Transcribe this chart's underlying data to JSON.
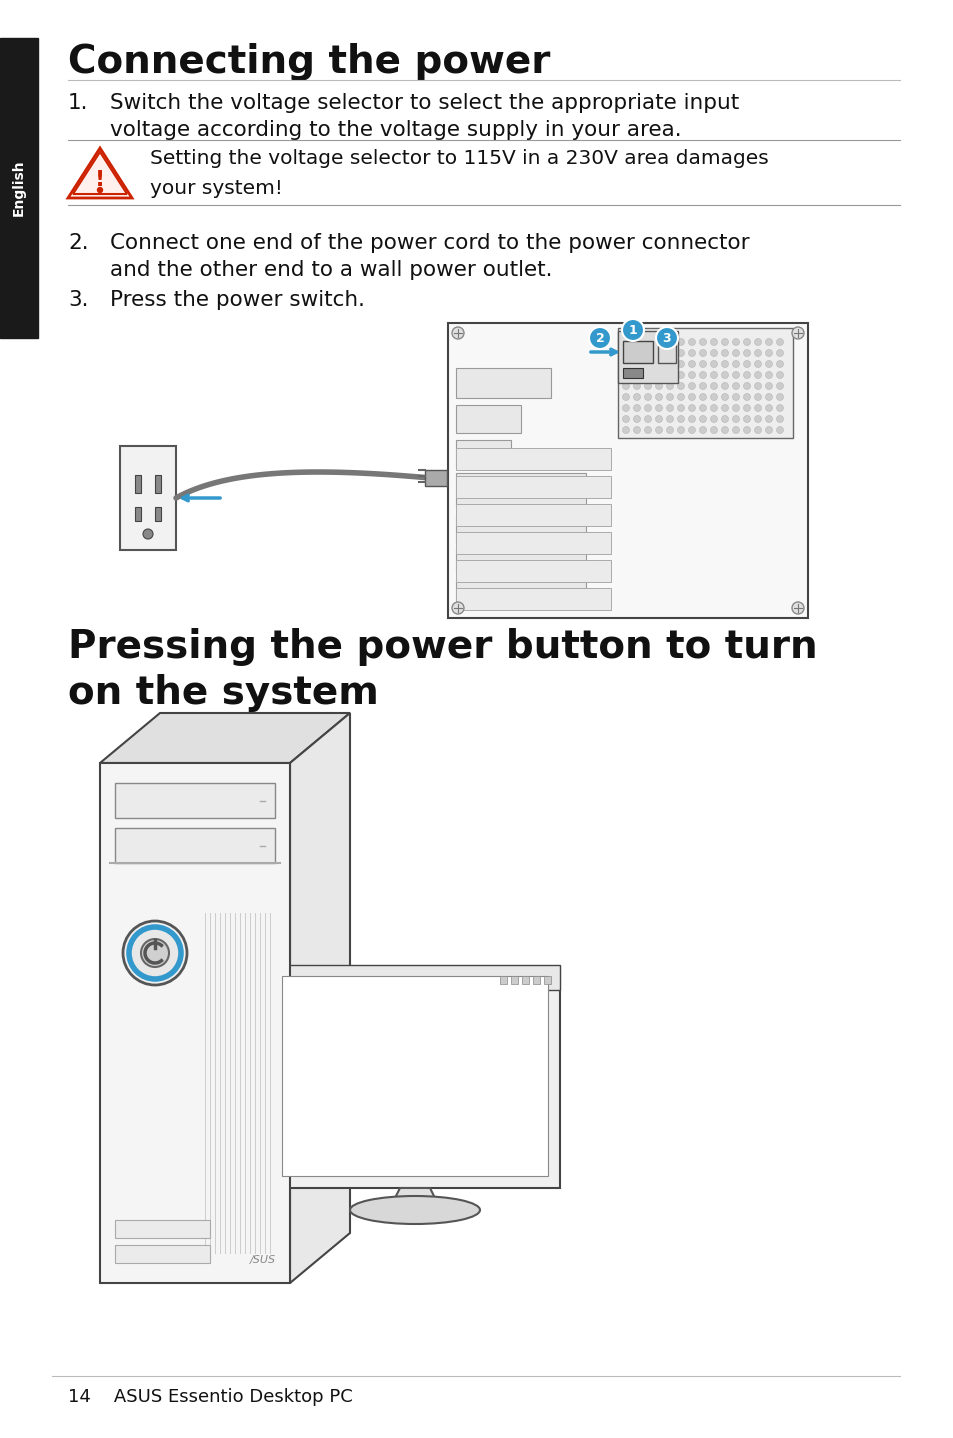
{
  "title1": "Connecting the power",
  "title2": "Pressing the power button to turn\non the system",
  "bg_color": "#ffffff",
  "sidebar_color": "#1a1a1a",
  "sidebar_text": "English",
  "sidebar_text_color": "#ffffff",
  "warning_text": "Setting the voltage selector to 115V in a 230V area damages\nyour system!",
  "footer_text": "14    ASUS Essentio Desktop PC",
  "text_color": "#111111",
  "line_color": "#bbbbbb",
  "warn_line_color": "#999999",
  "blue_color": "#3399cc",
  "red_color": "#cc2200",
  "title1_fontsize": 28,
  "title2_fontsize": 28,
  "body_fontsize": 15.5,
  "footer_fontsize": 13,
  "step1_line1": "Switch the voltage selector to select the appropriate input",
  "step1_line2": "voltage according to the voltage supply in your area.",
  "step2_line1": "Connect one end of the power cord to the power connector",
  "step2_line2": "and the other end to a wall power outlet.",
  "step3": "Press the power switch."
}
